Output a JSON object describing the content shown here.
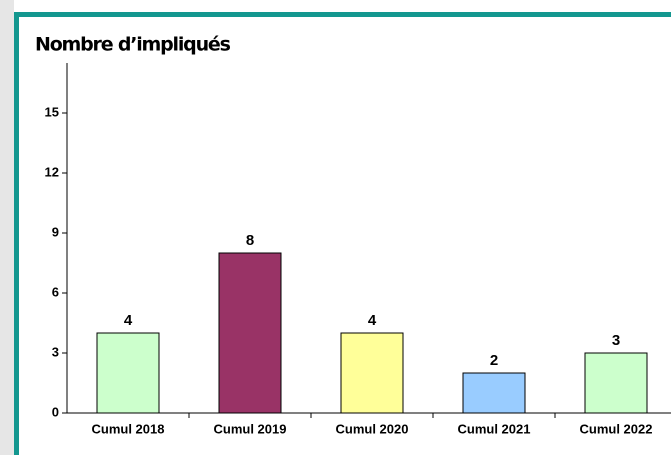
{
  "chart_data": {
    "type": "bar",
    "title": "Nombre d’impliqués",
    "categories": [
      "Cumul 2018",
      "Cumul 2019",
      "Cumul 2020",
      "Cumul 2021",
      "Cumul 2022"
    ],
    "values": [
      4,
      8,
      4,
      2,
      3
    ],
    "colors": [
      "#ccffcc",
      "#993366",
      "#ffff99",
      "#99ccff",
      "#ccffcc"
    ],
    "ylim": [
      0,
      17.5
    ],
    "yticks": [
      0,
      3,
      6,
      9,
      12,
      15
    ]
  }
}
